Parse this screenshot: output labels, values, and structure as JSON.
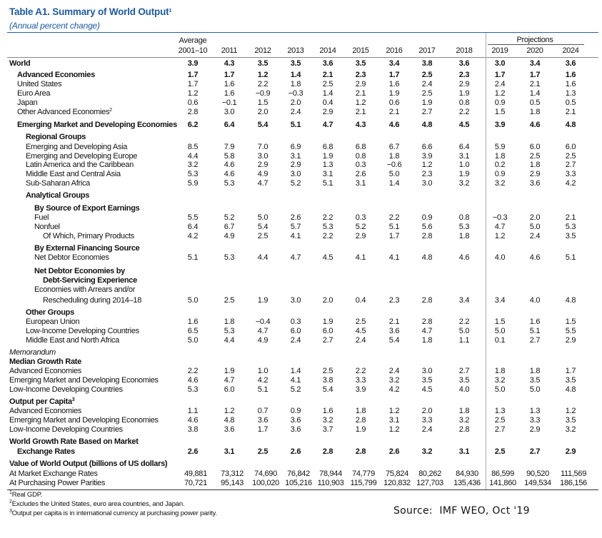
{
  "header": {
    "title": "Table A1. Summary of World Output",
    "title_note": "1",
    "subtitle": "(Annual percent change)"
  },
  "table": {
    "group_headers": {
      "average": "Average",
      "projections": "Projections"
    },
    "columns": [
      "2001–10",
      "2011",
      "2012",
      "2013",
      "2014",
      "2015",
      "2016",
      "2017",
      "2018",
      "2019",
      "2020",
      "2024"
    ],
    "rows": [
      {
        "label": "World",
        "values": [
          "3.9",
          "4.3",
          "3.5",
          "3.5",
          "3.6",
          "3.5",
          "3.4",
          "3.8",
          "3.6",
          "3.0",
          "3.4",
          "3.6"
        ]
      },
      {
        "label": "Advanced Economies",
        "values": [
          "1.7",
          "1.7",
          "1.2",
          "1.4",
          "2.1",
          "2.3",
          "1.7",
          "2.5",
          "2.3",
          "1.7",
          "1.7",
          "1.6"
        ]
      },
      {
        "label": "United States",
        "values": [
          "1.7",
          "1.6",
          "2.2",
          "1.8",
          "2.5",
          "2.9",
          "1.6",
          "2.4",
          "2.9",
          "2.4",
          "2.1",
          "1.6"
        ]
      },
      {
        "label": "Euro Area",
        "values": [
          "1.2",
          "1.6",
          "−0.9",
          "−0.3",
          "1.4",
          "2.1",
          "1.9",
          "2.5",
          "1.9",
          "1.2",
          "1.4",
          "1.3"
        ]
      },
      {
        "label": "Japan",
        "values": [
          "0.6",
          "−0.1",
          "1.5",
          "2.0",
          "0.4",
          "1.2",
          "0.6",
          "1.9",
          "0.8",
          "0.9",
          "0.5",
          "0.5"
        ]
      },
      {
        "label": "Other Advanced Economies",
        "note": "2",
        "values": [
          "2.8",
          "3.0",
          "2.0",
          "2.4",
          "2.9",
          "2.1",
          "2.1",
          "2.7",
          "2.2",
          "1.5",
          "1.8",
          "2.1"
        ]
      },
      {
        "label": "Emerging Market and Developing Economies",
        "values": [
          "6.2",
          "6.4",
          "5.4",
          "5.1",
          "4.7",
          "4.3",
          "4.6",
          "4.8",
          "4.5",
          "3.9",
          "4.6",
          "4.8"
        ]
      },
      {
        "label": "Regional Groups"
      },
      {
        "label": "Emerging and Developing Asia",
        "values": [
          "8.5",
          "7.9",
          "7.0",
          "6.9",
          "6.8",
          "6.8",
          "6.7",
          "6.6",
          "6.4",
          "5.9",
          "6.0",
          "6.0"
        ]
      },
      {
        "label": "Emerging and Developing Europe",
        "values": [
          "4.4",
          "5.8",
          "3.0",
          "3.1",
          "1.9",
          "0.8",
          "1.8",
          "3.9",
          "3.1",
          "1.8",
          "2.5",
          "2.5"
        ]
      },
      {
        "label": "Latin America and the Caribbean",
        "values": [
          "3.2",
          "4.6",
          "2.9",
          "2.9",
          "1.3",
          "0.3",
          "−0.6",
          "1.2",
          "1.0",
          "0.2",
          "1.8",
          "2.7"
        ]
      },
      {
        "label": "Middle East and Central Asia",
        "values": [
          "5.3",
          "4.6",
          "4.9",
          "3.0",
          "3.1",
          "2.6",
          "5.0",
          "2.3",
          "1.9",
          "0.9",
          "2.9",
          "3.3"
        ]
      },
      {
        "label": "Sub-Saharan Africa",
        "values": [
          "5.9",
          "5.3",
          "4.7",
          "5.2",
          "5.1",
          "3.1",
          "1.4",
          "3.0",
          "3.2",
          "3.2",
          "3.6",
          "4.2"
        ]
      },
      {
        "label": "Analytical Groups"
      },
      {
        "label": "By Source of Export Earnings"
      },
      {
        "label": "Fuel",
        "values": [
          "5.5",
          "5.2",
          "5.0",
          "2.6",
          "2.2",
          "0.3",
          "2.2",
          "0.9",
          "0.8",
          "−0.3",
          "2.0",
          "2.1"
        ]
      },
      {
        "label": "Nonfuel",
        "values": [
          "6.4",
          "6.7",
          "5.4",
          "5.7",
          "5.3",
          "5.2",
          "5.1",
          "5.6",
          "5.3",
          "4.7",
          "5.0",
          "5.3"
        ]
      },
      {
        "label": "Of Which, Primary Products",
        "values": [
          "4.2",
          "4.9",
          "2.5",
          "4.1",
          "2.2",
          "2.9",
          "1.7",
          "2.8",
          "1.8",
          "1.2",
          "2.4",
          "3.5"
        ]
      },
      {
        "label": "By External Financing Source"
      },
      {
        "label": "Net Debtor Economies",
        "values": [
          "5.1",
          "5.3",
          "4.4",
          "4.7",
          "4.5",
          "4.1",
          "4.1",
          "4.8",
          "4.6",
          "4.0",
          "4.6",
          "5.1"
        ]
      },
      {
        "lines": [
          "Net Debtor Economies by",
          "Debt-Servicing Experience"
        ]
      },
      {
        "lines": [
          "Economies with Arrears and/or",
          "Rescheduling during 2014–18"
        ],
        "values": [
          "5.0",
          "2.5",
          "1.9",
          "3.0",
          "2.0",
          "0.4",
          "2.3",
          "2.8",
          "3.4",
          "3.4",
          "4.0",
          "4.8"
        ]
      },
      {
        "label": "Other Groups"
      },
      {
        "label": "European Union",
        "values": [
          "1.6",
          "1.8",
          "−0.4",
          "0.3",
          "1.9",
          "2.5",
          "2.1",
          "2.8",
          "2.2",
          "1.5",
          "1.6",
          "1.5"
        ]
      },
      {
        "label": "Low-Income Developing Countries",
        "values": [
          "6.5",
          "5.3",
          "4.7",
          "6.0",
          "6.0",
          "4.5",
          "3.6",
          "4.7",
          "5.0",
          "5.0",
          "5.1",
          "5.5"
        ]
      },
      {
        "label": "Middle East and North Africa",
        "values": [
          "5.0",
          "4.4",
          "4.9",
          "2.4",
          "2.7",
          "2.4",
          "5.4",
          "1.8",
          "1.1",
          "0.1",
          "2.7",
          "2.9"
        ]
      },
      {
        "label": "Memorandum"
      },
      {
        "label": "Median Growth Rate"
      },
      {
        "label": "Advanced Economies",
        "values": [
          "2.2",
          "1.9",
          "1.0",
          "1.4",
          "2.5",
          "2.2",
          "2.4",
          "3.0",
          "2.7",
          "1.8",
          "1.8",
          "1.7"
        ]
      },
      {
        "label": "Emerging Market and Developing Economies",
        "values": [
          "4.6",
          "4.7",
          "4.2",
          "4.1",
          "3.8",
          "3.3",
          "3.2",
          "3.5",
          "3.5",
          "3.2",
          "3.5",
          "3.5"
        ]
      },
      {
        "label": "Low-Income Developing Countries",
        "values": [
          "5.3",
          "6.0",
          "5.1",
          "5.2",
          "5.4",
          "3.9",
          "4.2",
          "4.5",
          "4.0",
          "5.0",
          "5.0",
          "4.8"
        ]
      },
      {
        "label": "Output per Capita",
        "note": "3"
      },
      {
        "label": "Advanced Economies",
        "values": [
          "1.1",
          "1.2",
          "0.7",
          "0.9",
          "1.6",
          "1.8",
          "1.2",
          "2.0",
          "1.8",
          "1.3",
          "1.3",
          "1.2"
        ]
      },
      {
        "label": "Emerging Market and Developing Economies",
        "values": [
          "4.6",
          "4.8",
          "3.6",
          "3.6",
          "3.2",
          "2.8",
          "3.1",
          "3.3",
          "3.2",
          "2.5",
          "3.3",
          "3.5"
        ]
      },
      {
        "label": "Low-Income Developing Countries",
        "values": [
          "3.8",
          "3.6",
          "1.7",
          "3.6",
          "3.7",
          "1.9",
          "1.2",
          "2.4",
          "2.8",
          "2.7",
          "2.9",
          "3.2"
        ]
      },
      {
        "lines": [
          "World Growth Rate Based on Market",
          "Exchange Rates"
        ],
        "values": [
          "2.6",
          "3.1",
          "2.5",
          "2.6",
          "2.8",
          "2.8",
          "2.6",
          "3.2",
          "3.1",
          "2.5",
          "2.7",
          "2.9"
        ]
      },
      {
        "label": "Value of World Output (billions of US dollars)"
      },
      {
        "label": "At Market Exchange Rates",
        "values": [
          "49,881",
          "73,312",
          "74,690",
          "76,842",
          "78,944",
          "74,779",
          "75,824",
          "80,262",
          "84,930",
          "86,599",
          "90,520",
          "111,569"
        ]
      },
      {
        "label": "At Purchasing Power Parities",
        "values": [
          "70,721",
          "95,143",
          "100,020",
          "105,216",
          "110,903",
          "115,799",
          "120,832",
          "127,703",
          "135,436",
          "141,860",
          "149,534",
          "186,156"
        ]
      }
    ]
  },
  "footnotes": [
    {
      "note": "1",
      "text": "Real GDP."
    },
    {
      "note": "2",
      "text": "Excludes the United States, euro area countries, and Japan."
    },
    {
      "note": "3",
      "text": "Output per capita is in international currency at purchasing power parity."
    }
  ],
  "source": "Source:  IMF WEO, Oct '19"
}
